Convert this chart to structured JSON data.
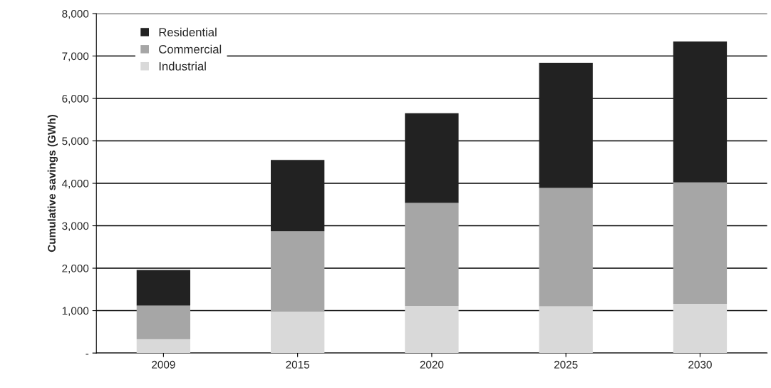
{
  "chart_data": {
    "type": "bar",
    "stacked": true,
    "ylabel": "Cumulative savings (GWh)",
    "categories": [
      "2009",
      "2015",
      "2020",
      "2025",
      "2030"
    ],
    "series": [
      {
        "name": "Industrial",
        "color": "#d9d9d9",
        "values": [
          330,
          980,
          1110,
          1100,
          1160
        ]
      },
      {
        "name": "Commercial",
        "color": "#a6a6a6",
        "values": [
          790,
          1890,
          2430,
          2790,
          2860
        ]
      },
      {
        "name": "Residential",
        "color": "#222222",
        "values": [
          840,
          1680,
          2110,
          2950,
          3320
        ]
      }
    ],
    "ylim": [
      0,
      8000
    ],
    "yticks": [
      {
        "value": 0,
        "label": "-"
      },
      {
        "value": 1000,
        "label": "1,000"
      },
      {
        "value": 2000,
        "label": "2,000"
      },
      {
        "value": 3000,
        "label": "3,000"
      },
      {
        "value": 4000,
        "label": "4,000"
      },
      {
        "value": 5000,
        "label": "5,000"
      },
      {
        "value": 6000,
        "label": "6,000"
      },
      {
        "value": 7000,
        "label": "7,000"
      },
      {
        "value": 8000,
        "label": "8,000"
      }
    ],
    "grid": "y",
    "legend": "top left"
  }
}
